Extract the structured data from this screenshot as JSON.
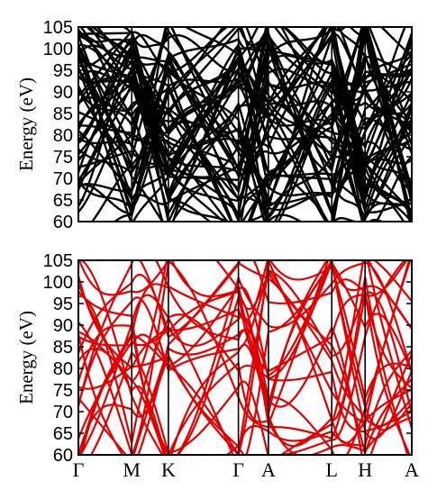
{
  "chart_data": [
    {
      "type": "line",
      "ylabel": "Energy (eV)",
      "ylim": [
        60,
        105
      ],
      "yticks": [
        60,
        65,
        70,
        75,
        80,
        85,
        90,
        95,
        100,
        105
      ],
      "kpath": [
        "Γ",
        "M",
        "K",
        "Γ",
        "A",
        "L",
        "H",
        "A"
      ],
      "kpath_fractions": [
        0,
        0.16,
        0.27,
        0.48,
        0.57,
        0.76,
        0.86,
        1.0
      ],
      "series_color": "#000000",
      "band_count_approx": 56,
      "xtick_labels_visible": false
    },
    {
      "type": "line",
      "ylabel": "Energy (eV)",
      "ylim": [
        60,
        105
      ],
      "yticks": [
        60,
        65,
        70,
        75,
        80,
        85,
        90,
        95,
        100,
        105
      ],
      "kpath": [
        "Γ",
        "M",
        "K",
        "Γ",
        "A",
        "L",
        "H",
        "A"
      ],
      "kpath_fractions": [
        0,
        0.16,
        0.27,
        0.48,
        0.57,
        0.76,
        0.86,
        1.0
      ],
      "series_color": "#e00000",
      "band_count_approx": 24,
      "xtick_labels_visible": true
    }
  ]
}
